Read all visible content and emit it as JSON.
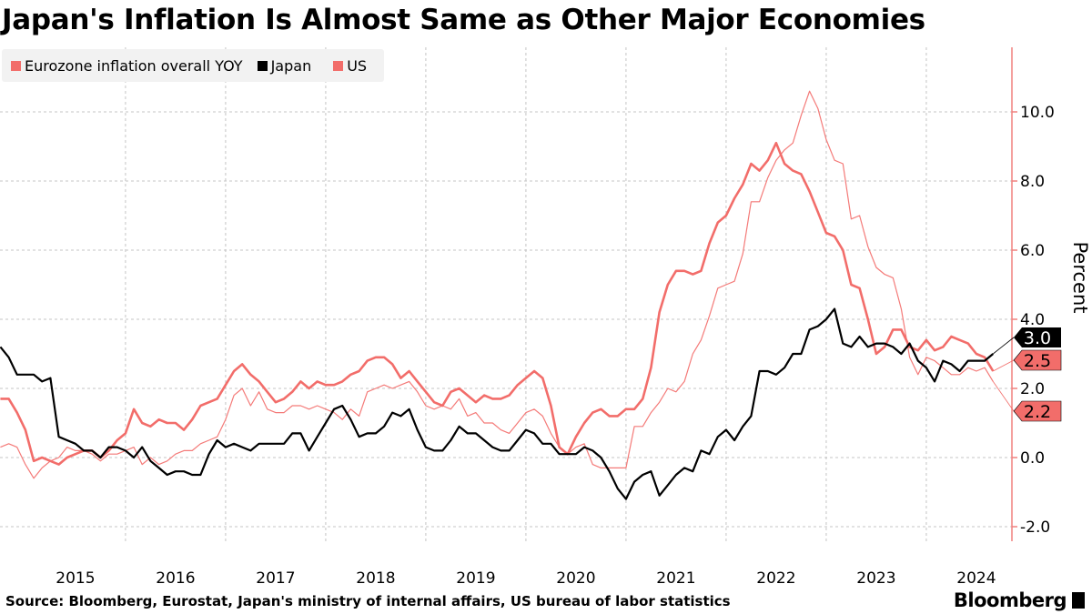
{
  "title": "Japan's Inflation Is Almost Same as Other Major Economies",
  "source": "Source: Bloomberg, Eurostat, Japan's ministry of internal affairs, US bureau of labor statistics",
  "logo": "Bloomberg",
  "colors": {
    "eurozone": "#f47a78",
    "japan": "#000000",
    "us": "#f26d6a",
    "axis": "#f0807e",
    "grid": "#bbbbbb"
  },
  "chart_data": {
    "type": "line",
    "title": "Japan's Inflation Is Almost Same as Other Major Economies",
    "ylabel": "Percent",
    "xlabel": "",
    "x_start": "2014-09",
    "x_end": "2024-08",
    "frequency": "monthly",
    "x_tick_labels": [
      "2015",
      "2016",
      "2017",
      "2018",
      "2019",
      "2020",
      "2021",
      "2022",
      "2023",
      "2024"
    ],
    "y_ticks": [
      -2,
      0,
      2,
      4,
      6,
      8,
      10
    ],
    "y_tick_labels": [
      "-2.0",
      "0.0",
      "2.0",
      "4.0",
      "6.0",
      "8.0",
      "10.0"
    ],
    "ylim": [
      -2.4,
      11.8
    ],
    "grid": true,
    "legend_position": "top-left",
    "series": [
      {
        "name": "Eurozone inflation overall YOY",
        "color": "#f47a78",
        "style": "thin",
        "last_label": "2.2",
        "values": [
          0.3,
          0.4,
          0.3,
          -0.2,
          -0.6,
          -0.3,
          -0.1,
          0.0,
          0.3,
          0.2,
          0.2,
          0.1,
          -0.1,
          0.1,
          0.1,
          0.2,
          0.3,
          -0.2,
          0.0,
          -0.2,
          -0.1,
          0.1,
          0.2,
          0.2,
          0.4,
          0.5,
          0.6,
          1.1,
          1.8,
          2.0,
          1.5,
          1.9,
          1.4,
          1.3,
          1.3,
          1.5,
          1.5,
          1.4,
          1.5,
          1.4,
          1.3,
          1.1,
          1.4,
          1.2,
          1.9,
          2.0,
          2.1,
          2.0,
          2.1,
          2.2,
          1.9,
          1.5,
          1.4,
          1.5,
          1.4,
          1.7,
          1.2,
          1.3,
          1.0,
          1.0,
          0.8,
          0.7,
          1.0,
          1.3,
          1.4,
          1.2,
          0.7,
          0.3,
          0.1,
          0.3,
          0.4,
          -0.2,
          -0.3,
          -0.3,
          -0.3,
          -0.3,
          0.9,
          0.9,
          1.3,
          1.6,
          2.0,
          1.9,
          2.2,
          3.0,
          3.4,
          4.1,
          4.9,
          5.0,
          5.1,
          5.9,
          7.4,
          7.4,
          8.1,
          8.6,
          8.9,
          9.1,
          9.9,
          10.6,
          10.1,
          9.2,
          8.6,
          8.5,
          6.9,
          7.0,
          6.1,
          5.5,
          5.3,
          5.2,
          4.3,
          2.9,
          2.4,
          2.9,
          2.8,
          2.6,
          2.4,
          2.4,
          2.6,
          2.5,
          2.6,
          2.2
        ]
      },
      {
        "name": "Japan",
        "color": "#000000",
        "style": "medium",
        "last_label": "3.0",
        "values": [
          3.2,
          2.9,
          2.4,
          2.4,
          2.4,
          2.2,
          2.3,
          0.6,
          0.5,
          0.4,
          0.2,
          0.2,
          0.0,
          0.3,
          0.3,
          0.2,
          0.0,
          0.3,
          -0.1,
          -0.3,
          -0.5,
          -0.4,
          -0.4,
          -0.5,
          -0.5,
          0.1,
          0.5,
          0.3,
          0.4,
          0.3,
          0.2,
          0.4,
          0.4,
          0.4,
          0.4,
          0.7,
          0.7,
          0.2,
          0.6,
          1.0,
          1.4,
          1.5,
          1.1,
          0.6,
          0.7,
          0.7,
          0.9,
          1.3,
          1.2,
          1.4,
          0.8,
          0.3,
          0.2,
          0.2,
          0.5,
          0.9,
          0.7,
          0.7,
          0.5,
          0.3,
          0.2,
          0.2,
          0.5,
          0.8,
          0.7,
          0.4,
          0.4,
          0.1,
          0.1,
          0.1,
          0.3,
          0.2,
          0.0,
          -0.4,
          -0.9,
          -1.2,
          -0.7,
          -0.5,
          -0.4,
          -1.1,
          -0.8,
          -0.5,
          -0.3,
          -0.4,
          0.2,
          0.1,
          0.6,
          0.8,
          0.5,
          0.9,
          1.2,
          2.5,
          2.5,
          2.4,
          2.6,
          3.0,
          3.0,
          3.7,
          3.8,
          4.0,
          4.3,
          3.3,
          3.2,
          3.5,
          3.2,
          3.3,
          3.3,
          3.2,
          3.0,
          3.3,
          2.8,
          2.6,
          2.2,
          2.8,
          2.7,
          2.5,
          2.8,
          2.8,
          2.8,
          3.0
        ]
      },
      {
        "name": "US",
        "color": "#f26d6a",
        "style": "thick",
        "last_label": "2.5",
        "values": [
          1.7,
          1.7,
          1.3,
          0.8,
          -0.1,
          0.0,
          -0.1,
          -0.2,
          0.0,
          0.1,
          0.2,
          0.2,
          0.0,
          0.2,
          0.5,
          0.7,
          1.4,
          1.0,
          0.9,
          1.1,
          1.0,
          1.0,
          0.8,
          1.1,
          1.5,
          1.6,
          1.7,
          2.1,
          2.5,
          2.7,
          2.4,
          2.2,
          1.9,
          1.6,
          1.7,
          1.9,
          2.2,
          2.0,
          2.2,
          2.1,
          2.1,
          2.2,
          2.4,
          2.5,
          2.8,
          2.9,
          2.9,
          2.7,
          2.3,
          2.5,
          2.2,
          1.9,
          1.6,
          1.5,
          1.9,
          2.0,
          1.8,
          1.6,
          1.8,
          1.7,
          1.7,
          1.8,
          2.1,
          2.3,
          2.5,
          2.3,
          1.5,
          0.3,
          0.1,
          0.6,
          1.0,
          1.3,
          1.4,
          1.2,
          1.2,
          1.4,
          1.4,
          1.7,
          2.6,
          4.2,
          5.0,
          5.4,
          5.4,
          5.3,
          5.4,
          6.2,
          6.8,
          7.0,
          7.5,
          7.9,
          8.5,
          8.3,
          8.6,
          9.1,
          8.5,
          8.3,
          8.2,
          7.7,
          7.1,
          6.5,
          6.4,
          6.0,
          5.0,
          4.9,
          4.0,
          3.0,
          3.2,
          3.7,
          3.7,
          3.2,
          3.1,
          3.4,
          3.1,
          3.2,
          3.5,
          3.4,
          3.3,
          3.0,
          2.9,
          2.5
        ]
      }
    ]
  }
}
